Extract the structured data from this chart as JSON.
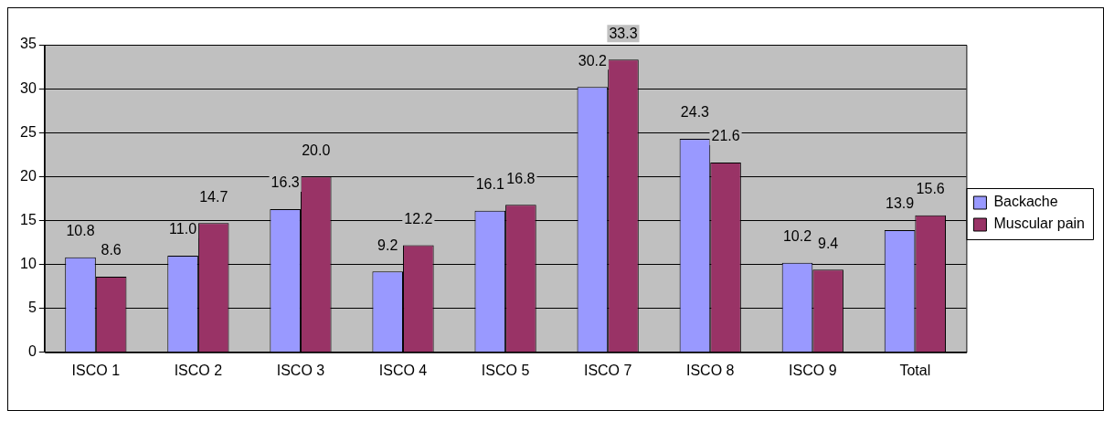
{
  "chart_data": {
    "type": "bar",
    "categories": [
      "ISCO 1",
      "ISCO 2",
      "ISCO 3",
      "ISCO 4",
      "ISCO 5",
      "ISCO 7",
      "ISCO 8",
      "ISCO 9",
      "Total"
    ],
    "series": [
      {
        "name": "Backache",
        "color": "#9999ff",
        "values": [
          10.8,
          11.0,
          16.3,
          9.2,
          16.1,
          30.2,
          24.3,
          10.2,
          13.9
        ],
        "value_labels": [
          "10.8",
          "11.0",
          "16.3",
          "9.2",
          "16.1",
          "30.2",
          "24.3",
          "10.2",
          "13.9"
        ]
      },
      {
        "name": "Muscular pain",
        "color": "#993366",
        "values": [
          8.6,
          14.7,
          20.0,
          12.2,
          16.8,
          33.3,
          21.6,
          9.4,
          15.6
        ],
        "value_labels": [
          "8.6",
          "14.7",
          "20.0",
          "12.2",
          "16.8",
          "33.3",
          "21.6",
          "9.4",
          "15.6"
        ]
      }
    ],
    "ylim": [
      0,
      35
    ],
    "yticks": [
      0,
      5,
      10,
      15,
      20,
      25,
      30,
      35
    ],
    "grid": "y",
    "legend": "right"
  }
}
